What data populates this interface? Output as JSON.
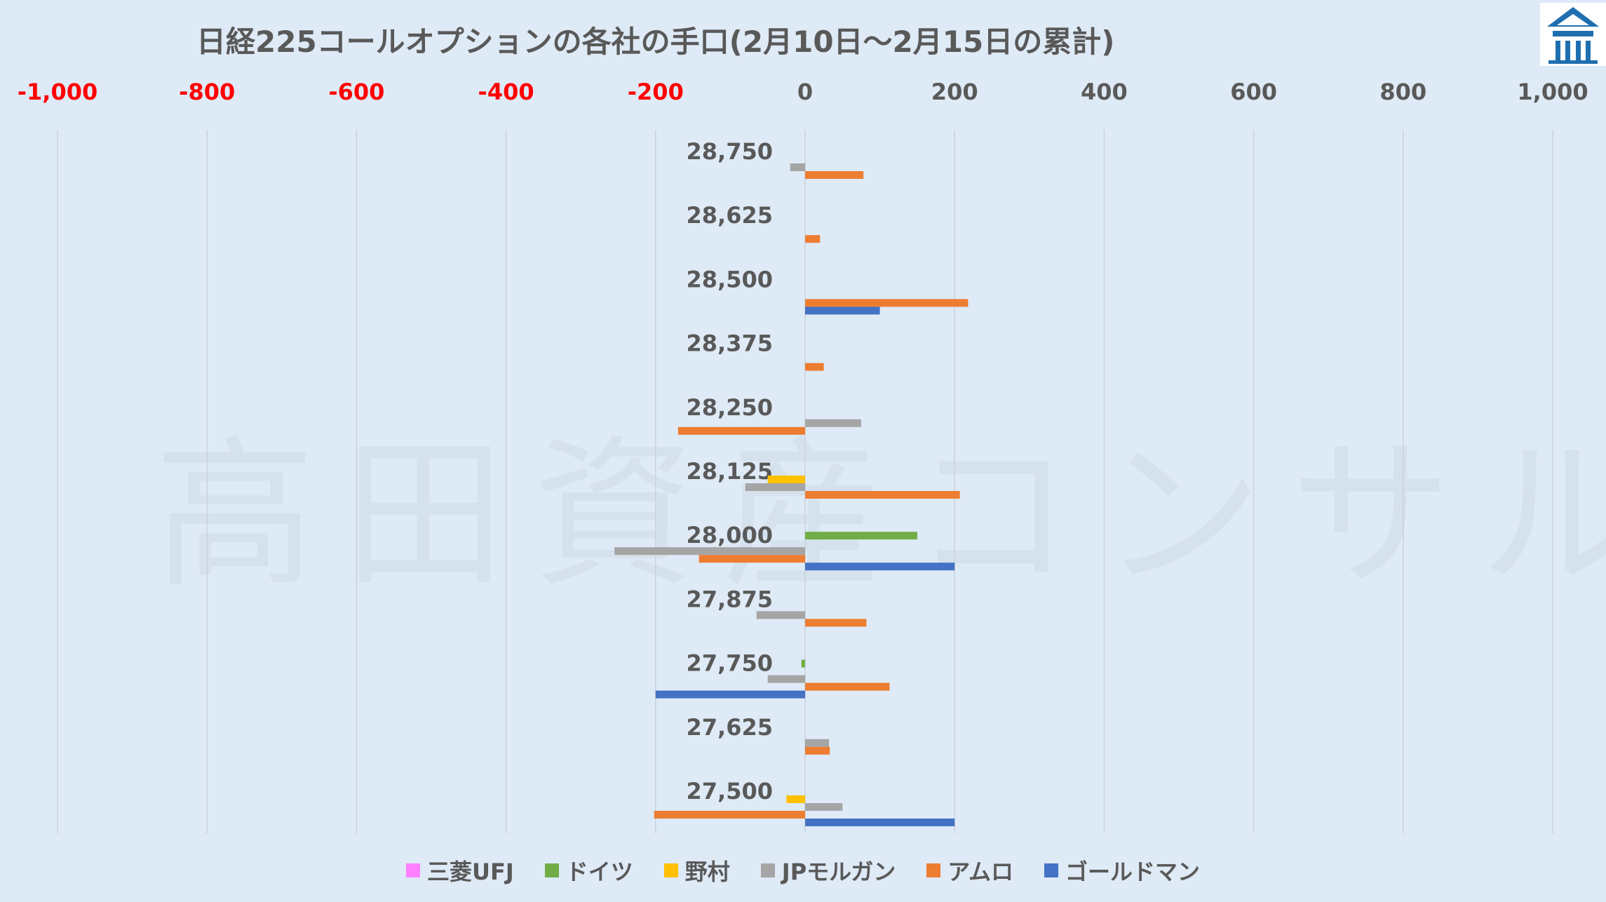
{
  "chart_data": {
    "type": "bar",
    "orientation": "horizontal",
    "title": "日経225コールオプションの各社の手口(2月10日～2月15日の累計)",
    "xlim": [
      -1000,
      1000
    ],
    "x_ticks": [
      {
        "value": -1000,
        "label": "-1,000"
      },
      {
        "value": -800,
        "label": "-800"
      },
      {
        "value": -600,
        "label": "-600"
      },
      {
        "value": -400,
        "label": "-400"
      },
      {
        "value": -200,
        "label": "-200"
      },
      {
        "value": 0,
        "label": "0"
      },
      {
        "value": 200,
        "label": "200"
      },
      {
        "value": 400,
        "label": "400"
      },
      {
        "value": 600,
        "label": "600"
      },
      {
        "value": 800,
        "label": "800"
      },
      {
        "value": 1000,
        "label": "1,000"
      }
    ],
    "negative_tick_color": "#ff0000",
    "positive_tick_color": "#595959",
    "grid": "vertical",
    "legend_position": "bottom",
    "categories": [
      "28,750",
      "28,625",
      "28,500",
      "28,375",
      "28,250",
      "28,125",
      "28,000",
      "27,875",
      "27,750",
      "27,625",
      "27,500"
    ],
    "series": [
      {
        "name": "三菱UFJ",
        "color": "#ff80ff",
        "values": [
          0,
          0,
          0,
          0,
          0,
          0,
          0,
          0,
          0,
          0,
          0
        ]
      },
      {
        "name": "ドイツ",
        "color": "#70ad47",
        "values": [
          0,
          0,
          0,
          0,
          0,
          0,
          150,
          0,
          -5,
          0,
          0
        ]
      },
      {
        "name": "野村",
        "color": "#ffc000",
        "values": [
          0,
          0,
          0,
          0,
          0,
          -50,
          0,
          0,
          0,
          0,
          -25
        ]
      },
      {
        "name": "JPモルガン",
        "color": "#a5a5a5",
        "values": [
          -20,
          0,
          0,
          0,
          75,
          -80,
          -255,
          -65,
          -50,
          32,
          50
        ]
      },
      {
        "name": "アムロ",
        "color": "#ed7d31",
        "values": [
          78,
          20,
          218,
          25,
          -170,
          207,
          -142,
          82,
          113,
          33,
          -202
        ]
      },
      {
        "name": "ゴールドマン",
        "color": "#4472c4",
        "values": [
          0,
          0,
          100,
          0,
          0,
          0,
          200,
          0,
          -200,
          0,
          200
        ]
      }
    ]
  },
  "watermark": "高田資産コンサル",
  "logo": {
    "icon": "house-logo-icon",
    "color": "#1f6fb0"
  }
}
